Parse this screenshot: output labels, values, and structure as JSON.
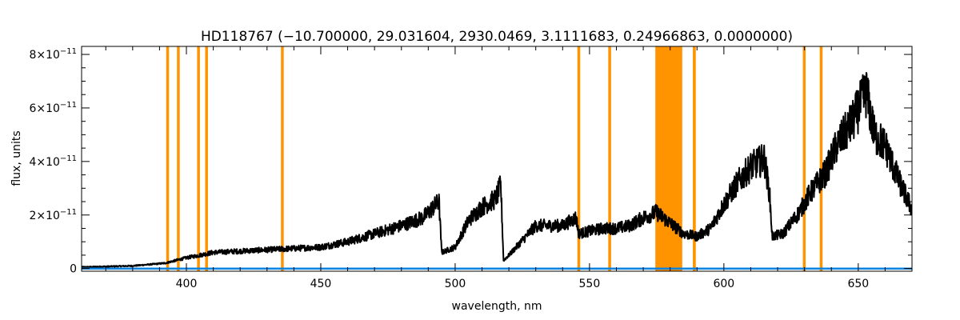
{
  "chart_data": {
    "type": "line",
    "title": "HD118767    (−10.700000, 29.031604, 2930.0469, 3.1111683, 0.24966863, 0.0000000)",
    "xlabel": "wavelength, nm",
    "ylabel": "flux, units",
    "xlim": [
      361,
      670
    ],
    "ylim": [
      -1e-12,
      8.3e-11
    ],
    "x_ticks": [
      400,
      450,
      500,
      550,
      600,
      650
    ],
    "x_tick_labels": [
      "400",
      "450",
      "500",
      "550",
      "600",
      "650"
    ],
    "y_ticks": [
      0,
      2e-11,
      4e-11,
      6e-11,
      8e-11
    ],
    "y_tick_labels": [
      {
        "mant": "0",
        "exp": ""
      },
      {
        "mant": "2×10",
        "exp": "−11"
      },
      {
        "mant": "4×10",
        "exp": "−11"
      },
      {
        "mant": "6×10",
        "exp": "−11"
      },
      {
        "mant": "8×10",
        "exp": "−11"
      }
    ],
    "grid": false,
    "series": [
      {
        "color": "#000000",
        "noise_frac": 0.15,
        "x": [
          361,
          380,
          392,
          400,
          410,
          420,
          430,
          440,
          450,
          460,
          470,
          480,
          488,
          494,
          495,
          500,
          505,
          510,
          515,
          517,
          518,
          520,
          530,
          540,
          545,
          546,
          550,
          555,
          560,
          565,
          570,
          575,
          576,
          580,
          585,
          590,
          595,
          600,
          605,
          610,
          615,
          617,
          618,
          622,
          628,
          632,
          638,
          642,
          648,
          653,
          656,
          660,
          665,
          670
        ],
        "y": [
          5e-13,
          1e-12,
          2e-12,
          4e-12,
          6e-12,
          6.5e-12,
          7e-12,
          7.5e-12,
          8e-12,
          1e-11,
          1.3e-11,
          1.6e-11,
          1.9e-11,
          2.5e-11,
          6e-12,
          8e-12,
          1.8e-11,
          2.3e-11,
          2.6e-11,
          3.1e-11,
          3e-12,
          5e-12,
          1.6e-11,
          1.6e-11,
          1.9e-11,
          1.3e-11,
          1.4e-11,
          1.5e-11,
          1.5e-11,
          1.6e-11,
          1.9e-11,
          2.1e-11,
          2e-11,
          1.7e-11,
          1.3e-11,
          1.2e-11,
          1.5e-11,
          2.4e-11,
          3.2e-11,
          3.8e-11,
          4.1e-11,
          2.8e-11,
          1.2e-11,
          1.3e-11,
          2.1e-11,
          2.8e-11,
          3.6e-11,
          4.6e-11,
          5.5e-11,
          6.6e-11,
          5e-11,
          4.6e-11,
          3.3e-11,
          2.2e-11
        ]
      },
      {
        "color": "#0a84e0",
        "x": [
          361,
          670
        ],
        "y": [
          0,
          0
        ]
      }
    ],
    "highlight_color": "#ff9300",
    "vertical_lines": [
      393,
      397,
      404.5,
      407.5,
      435.7,
      546,
      557.5,
      589,
      629.9,
      636.2
    ],
    "vertical_bands": [
      [
        574.5,
        584.5
      ],
      [
        588.5,
        589.5
      ]
    ]
  }
}
